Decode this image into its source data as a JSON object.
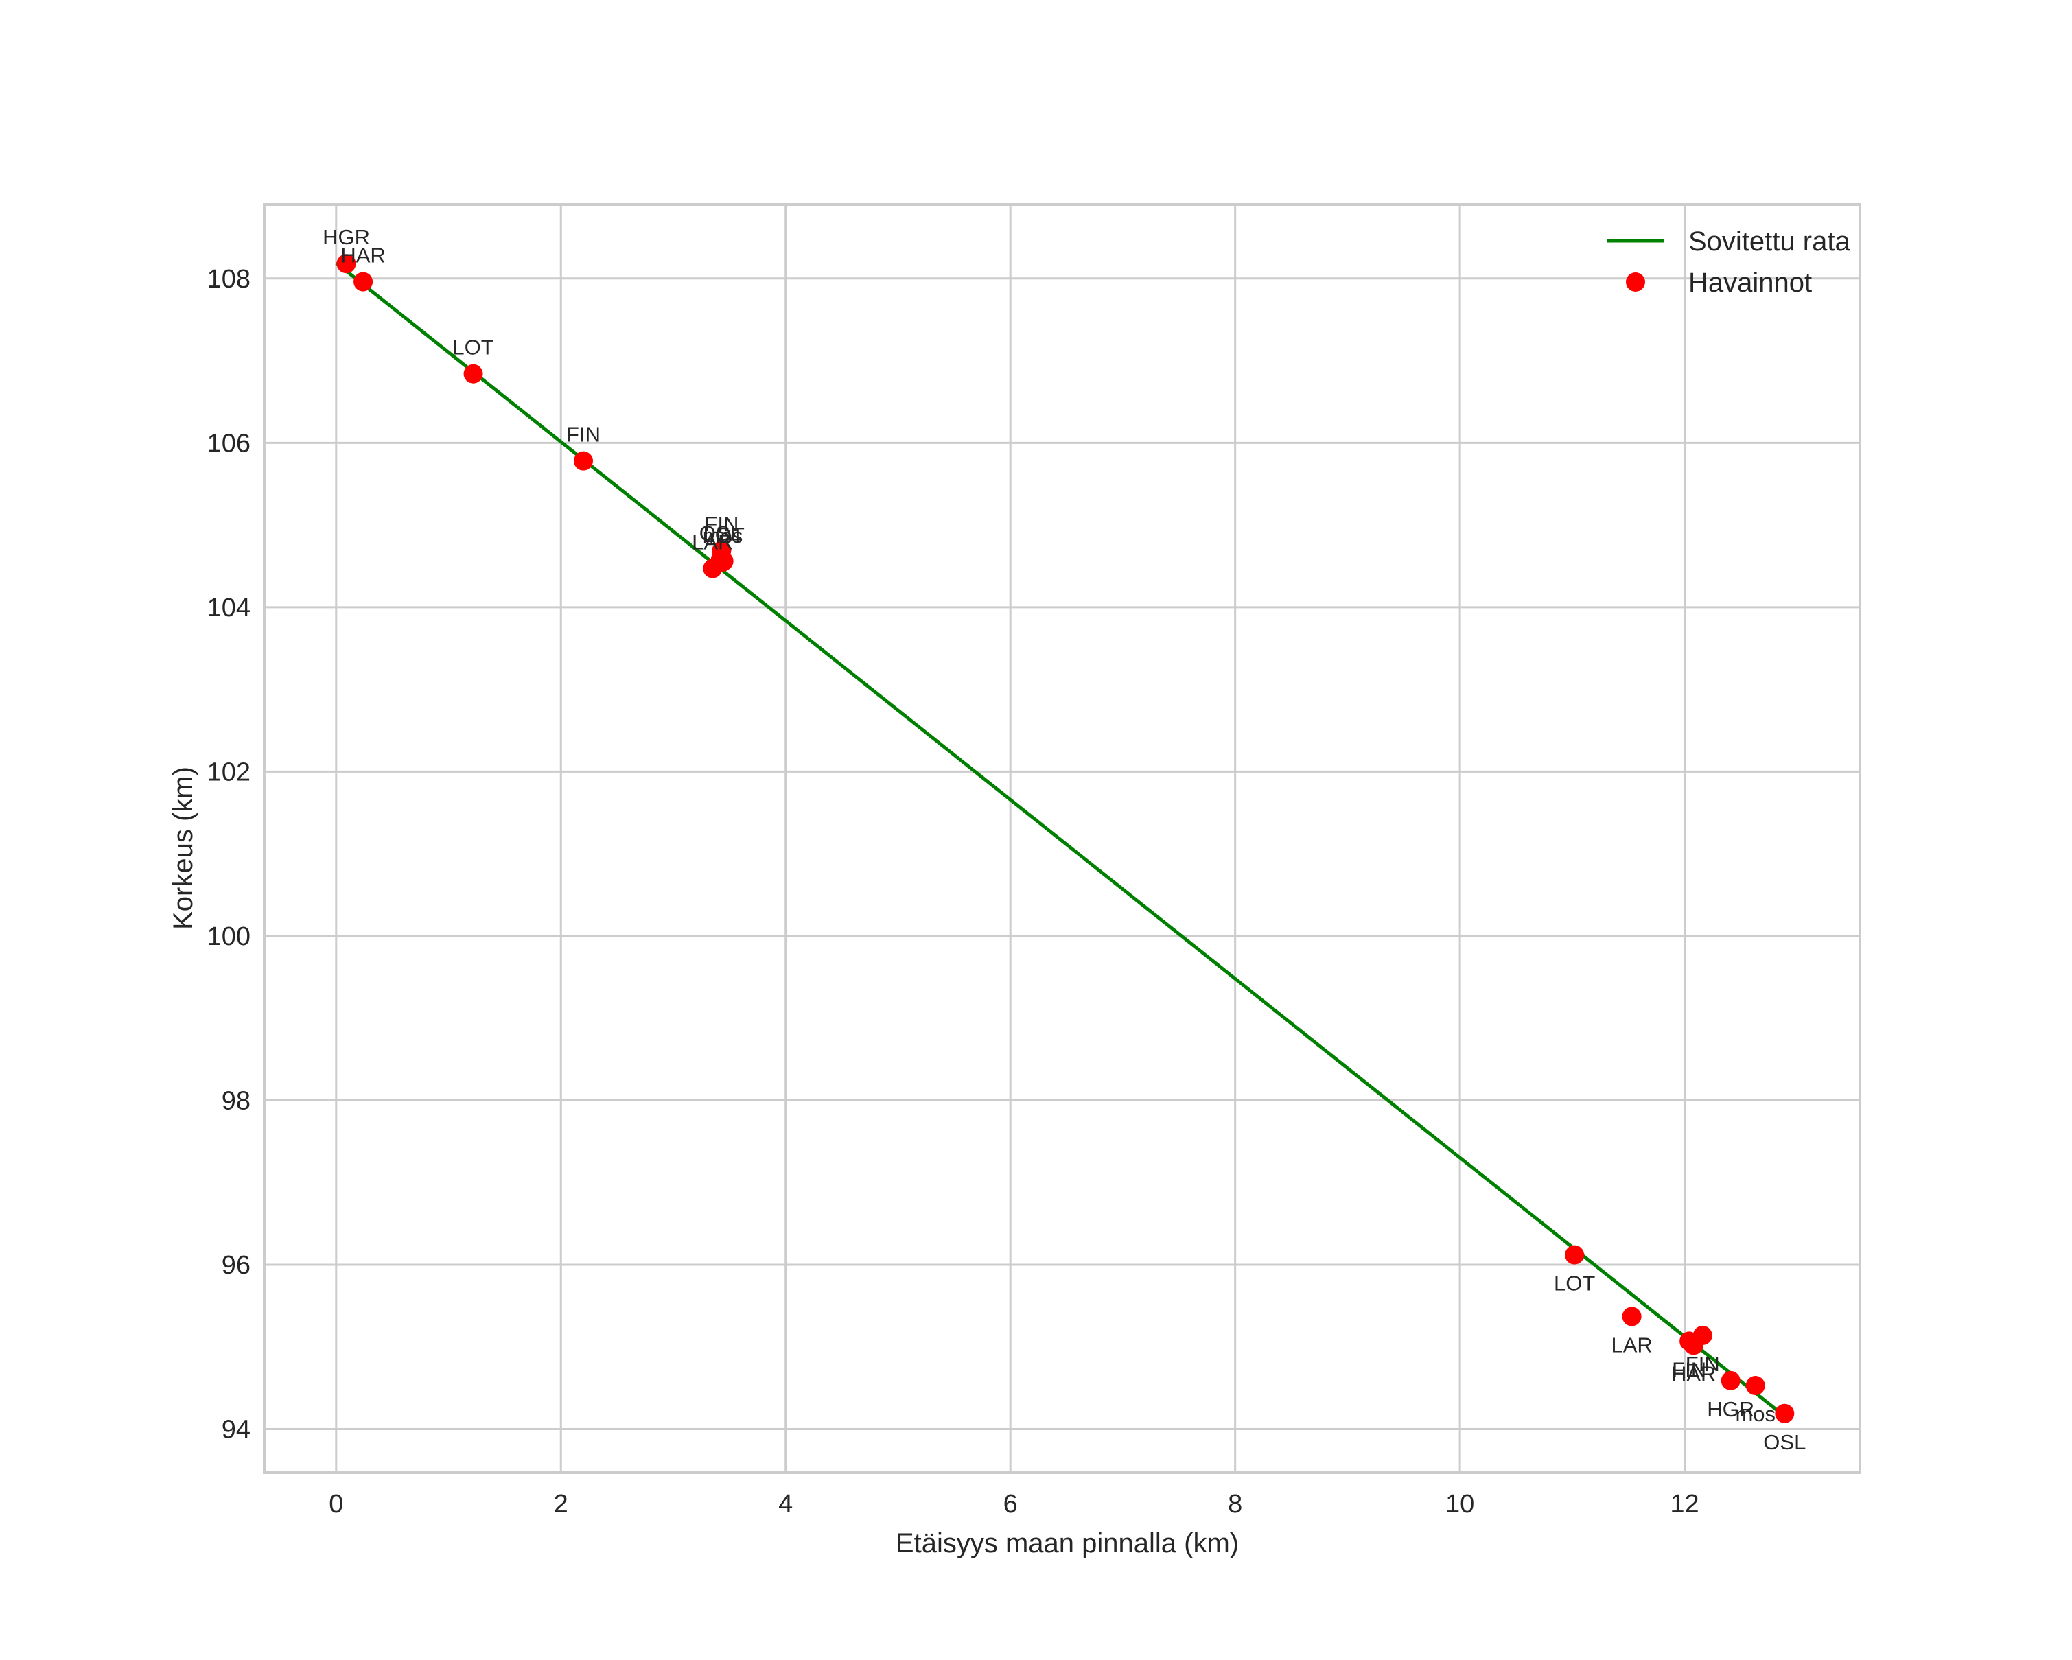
{
  "chart_data": {
    "type": "scatter",
    "title": "",
    "xlabel": "Etäisyys maan pinnalla (km)",
    "ylabel": "Korkeus (km)",
    "xlim": [
      -0.64,
      13.56
    ],
    "ylim": [
      93.47,
      108.9
    ],
    "xticks": [
      0,
      2,
      4,
      6,
      8,
      10,
      12
    ],
    "yticks": [
      94,
      96,
      98,
      100,
      102,
      104,
      106,
      108
    ],
    "grid": true,
    "legend": {
      "position": "upper right",
      "entries": [
        {
          "label": "Sovitettu rata",
          "type": "line",
          "color": "#008000"
        },
        {
          "label": "Havainnot",
          "type": "marker",
          "color": "#ff0000"
        }
      ]
    },
    "series": [
      {
        "name": "Sovitettu rata",
        "type": "line",
        "color": "#008000",
        "x": [
          0.0,
          12.85
        ],
        "y": [
          108.19,
          94.2
        ]
      },
      {
        "name": "Havainnot",
        "type": "scatter",
        "color": "#ff0000",
        "points": [
          {
            "x": 0.09,
            "y": 108.18,
            "label": "HGR",
            "label_pos": "above"
          },
          {
            "x": 0.24,
            "y": 107.96,
            "label": "HAR",
            "label_pos": "above"
          },
          {
            "x": 1.22,
            "y": 106.84,
            "label": "LOT",
            "label_pos": "above"
          },
          {
            "x": 2.2,
            "y": 105.78,
            "label": "FIN",
            "label_pos": "above"
          },
          {
            "x": 3.43,
            "y": 104.69,
            "label": "FIN",
            "label_pos": "above"
          },
          {
            "x": 3.42,
            "y": 104.58,
            "label": "OSL",
            "label_pos": "above"
          },
          {
            "x": 3.45,
            "y": 104.56,
            "label": "LOT",
            "label_pos": "above"
          },
          {
            "x": 3.44,
            "y": 104.55,
            "label": "mos",
            "label_pos": "above"
          },
          {
            "x": 3.35,
            "y": 104.47,
            "label": "LAR",
            "label_pos": "above"
          },
          {
            "x": 11.02,
            "y": 96.12,
            "label": "LOT",
            "label_pos": "below"
          },
          {
            "x": 11.53,
            "y": 95.37,
            "label": "LAR",
            "label_pos": "below"
          },
          {
            "x": 12.04,
            "y": 95.07,
            "label": "FIN",
            "label_pos": "below"
          },
          {
            "x": 12.08,
            "y": 95.02,
            "label": "HAR",
            "label_pos": "below"
          },
          {
            "x": 12.16,
            "y": 95.14,
            "label": "FIN",
            "label_pos": "below"
          },
          {
            "x": 12.41,
            "y": 94.59,
            "label": "HGR",
            "label_pos": "below"
          },
          {
            "x": 12.63,
            "y": 94.53,
            "label": "mos",
            "label_pos": "below"
          },
          {
            "x": 12.89,
            "y": 94.19,
            "label": "OSL",
            "label_pos": "below"
          }
        ]
      }
    ]
  },
  "colors": {
    "fit_line": "#008000",
    "observations": "#ff0000",
    "grid": "#cccccc",
    "text": "#262626"
  }
}
